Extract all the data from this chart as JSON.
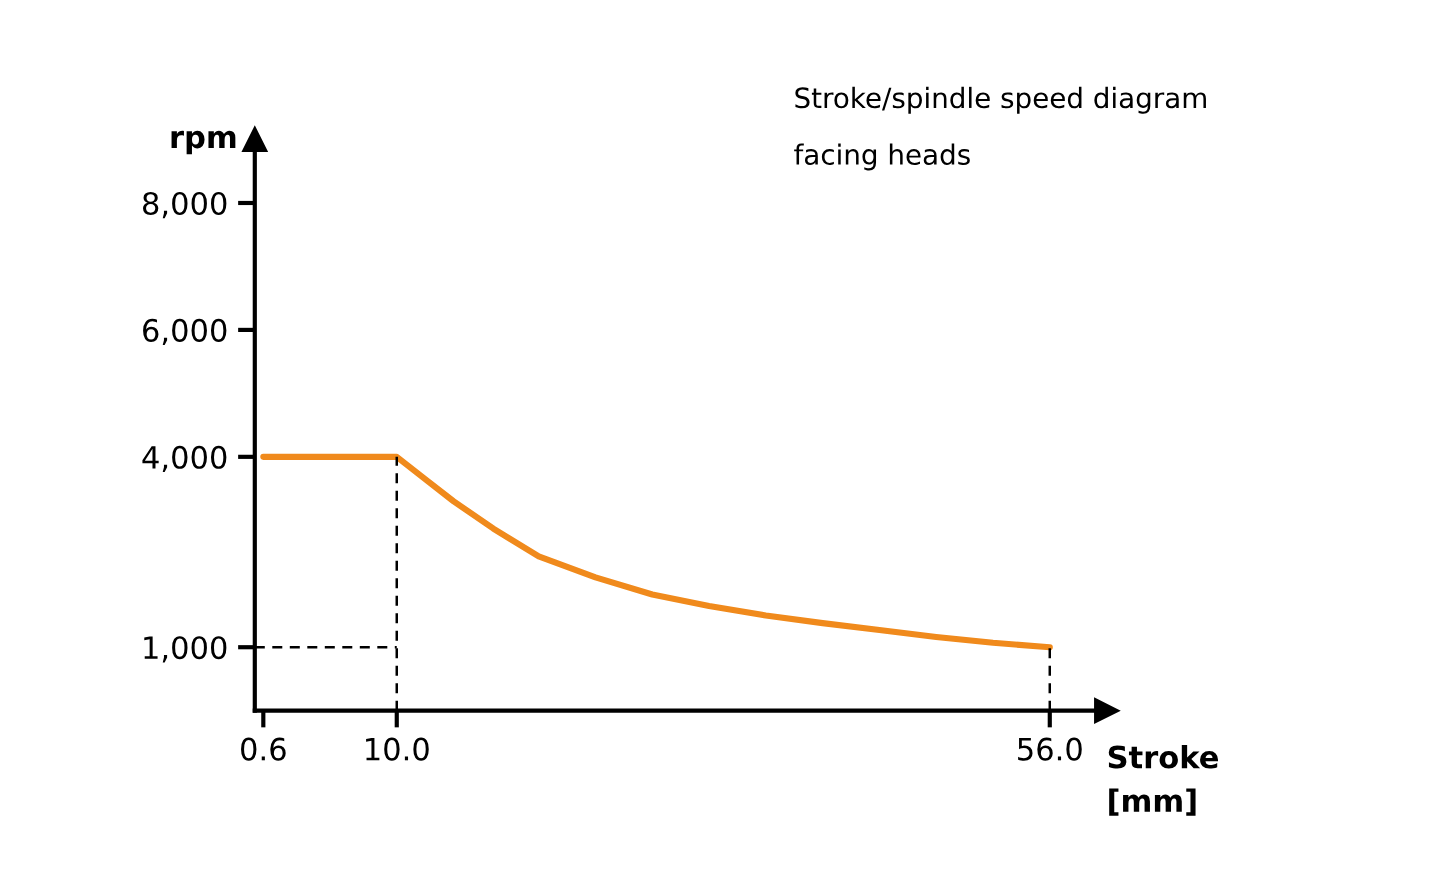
{
  "chart_data": {
    "type": "line",
    "title": "Stroke/spindle speed diagram",
    "subtitle": "facing heads",
    "xlabel": "Stroke\n[mm]",
    "ylabel": "rpm",
    "series": [
      {
        "color": "#f08a1c",
        "x": [
          0.6,
          10,
          12,
          14,
          16.8,
          20,
          24,
          28,
          32,
          36,
          40,
          44,
          48,
          52,
          56
        ],
        "values": [
          4000,
          4000,
          3650,
          3300,
          2870,
          2430,
          2100,
          1830,
          1650,
          1500,
          1380,
          1270,
          1160,
          1070,
          1000
        ]
      },
      {
        "color": "#000000",
        "line_style": "dashed",
        "x": [
          0,
          10
        ],
        "values": [
          1000,
          1000
        ]
      },
      {
        "color": "#000000",
        "line_style": "dashed",
        "x": [
          10,
          10
        ],
        "values": [
          0,
          4000
        ]
      },
      {
        "color": "#000000",
        "line_style": "dashed",
        "x": [
          56,
          56
        ],
        "values": [
          0,
          1000
        ]
      }
    ],
    "xlim": [
      0,
      60
    ],
    "ylim": [
      0,
      9000
    ],
    "xticks": [
      {
        "value": 0.6,
        "label": "0.6"
      },
      {
        "value": 10,
        "label": "10.0"
      },
      {
        "value": 56,
        "label": "56.0"
      }
    ],
    "yticks": [
      {
        "value": 1000,
        "label": "1,000"
      },
      {
        "value": 4000,
        "label": "4,000"
      },
      {
        "value": 6000,
        "label": "6,000"
      },
      {
        "value": 8000,
        "label": "8,000"
      }
    ],
    "grid": false,
    "legend": false
  }
}
